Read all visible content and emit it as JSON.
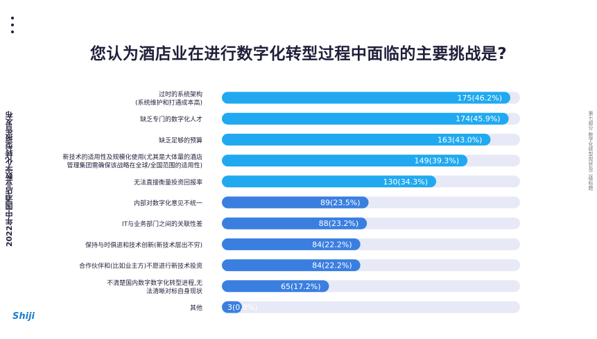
{
  "title": "您认为酒店业在进行数字化转型过程中面临的主要挑战是?",
  "side_title_left": "2022年中国酒店业数字化转型报告发布",
  "side_title_right": "第七部分 数字化转型现状及二级标题",
  "logo_text": "Shiji",
  "colors": {
    "bar_light": "#20a9f0",
    "bar_dark": "#3a7fe0",
    "track": "#e8e9f6",
    "text": "#1f1f3a",
    "value_text": "#ffffff"
  },
  "chart_data": {
    "type": "bar",
    "orientation": "horizontal",
    "title": "您认为酒店业在进行数字化转型过程中面临的主要挑战是?",
    "max_value": 175,
    "categories": [
      [
        "过时的系统架构",
        "(系统维护和打通成本高)"
      ],
      [
        "缺乏专门的数字化人才"
      ],
      [
        "缺乏足够的预算"
      ],
      [
        "新技术的适用性及规模化使用(尤其是大体量的酒店",
        "管理集团需确保该战略在全球/全国范围的适用性)"
      ],
      [
        "无法直接衡量投资回报率"
      ],
      [
        "内部对数字化意见不统一"
      ],
      [
        "IT与业务部门之间的关联性差"
      ],
      [
        "保持与时俱进和技术创新(新技术层出不穷)"
      ],
      [
        "合作伙伴和(比如业主方)不愿进行新技术投资"
      ],
      [
        "不清楚国内数字数字化转型进程,无",
        "法清晰对标自身现状"
      ],
      [
        "其他"
      ]
    ],
    "values": [
      175,
      174,
      163,
      149,
      130,
      89,
      88,
      84,
      84,
      65,
      3
    ],
    "percentages": [
      "46.2%",
      "45.9%",
      "43.0%",
      "39.3%",
      "34.3%",
      "23.5%",
      "23.2%",
      "22.2%",
      "22.2%",
      "17.2%",
      "0.8%"
    ],
    "value_labels": [
      "175(46.2%)",
      "174(45.9%)",
      "163(43.0%)",
      "149(39.3%)",
      "130(34.3%)",
      "89(23.5%)",
      "88(23.2%)",
      "84(22.2%)",
      "84(22.2%)",
      "65(17.2%)",
      "3(0.8%)"
    ],
    "xlim": [
      0,
      175
    ],
    "grid": false,
    "legend": "none"
  }
}
